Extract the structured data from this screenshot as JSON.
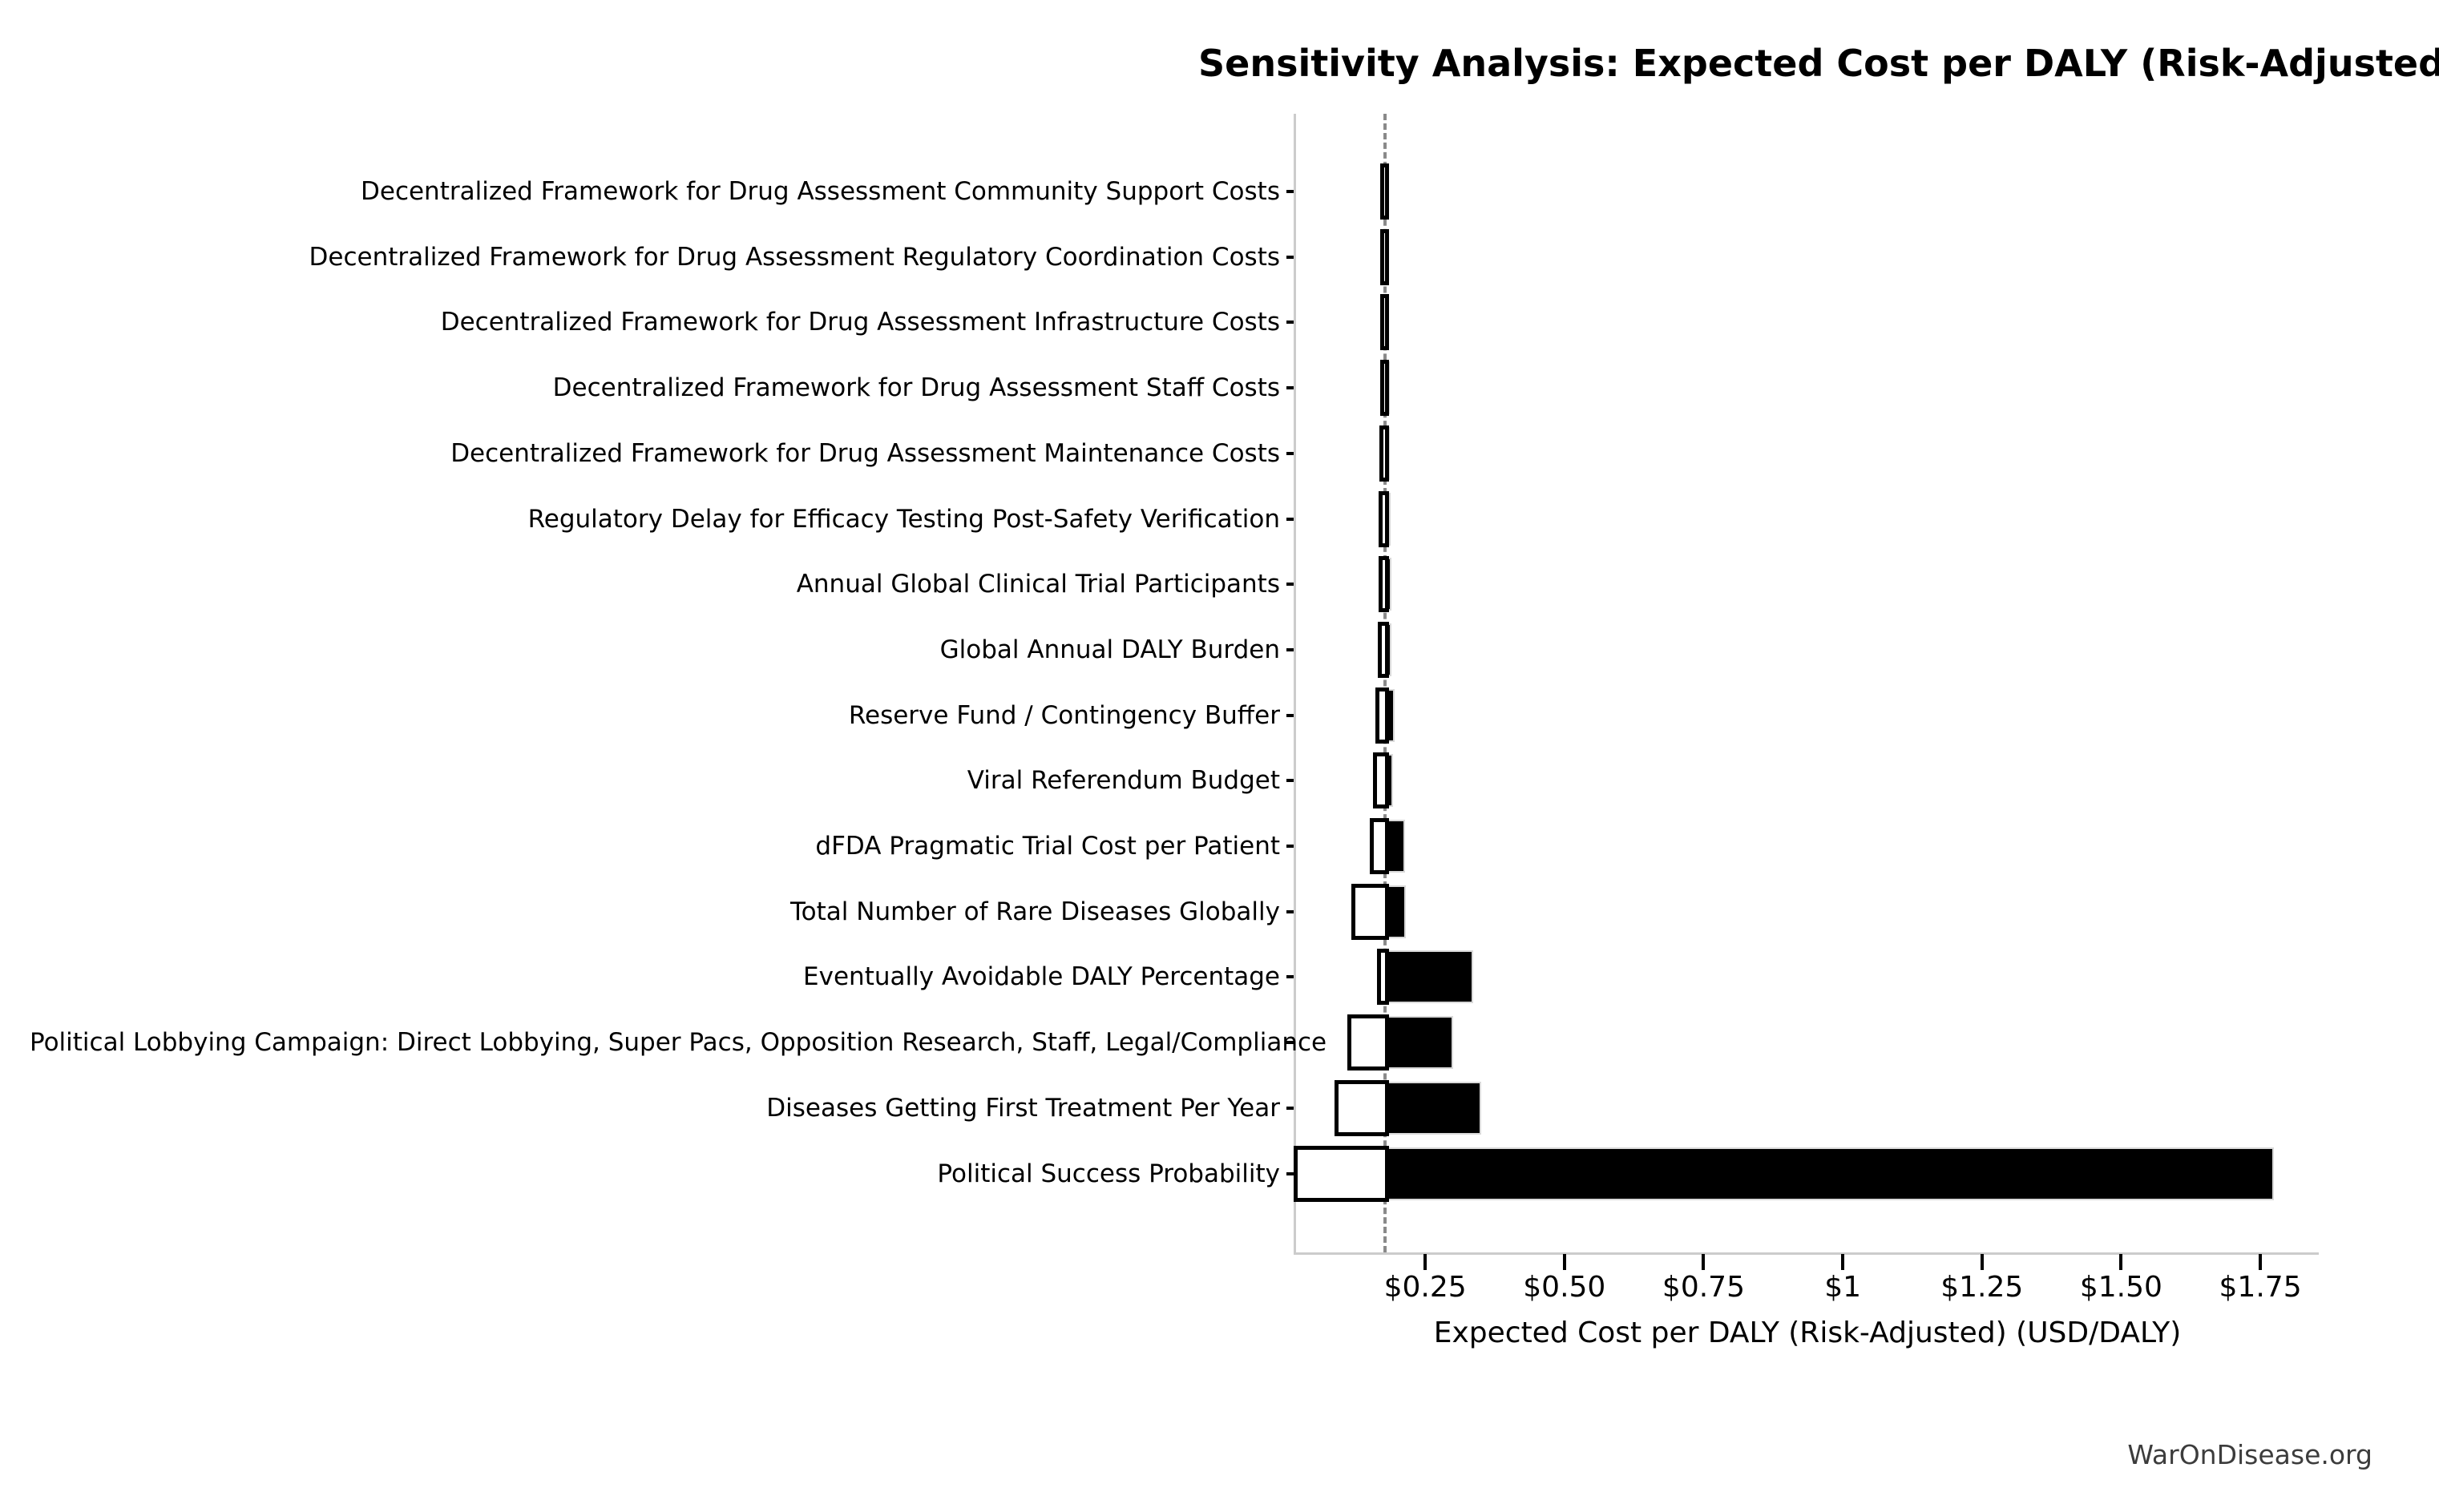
{
  "footer": {
    "watermark": "WarOnDisease.org"
  },
  "chart_data": {
    "type": "bar",
    "variant": "tornado-sensitivity",
    "orientation": "horizontal",
    "title": "Sensitivity Analysis: Expected Cost per DALY (Risk-Adjusted)",
    "xlabel": "Expected Cost per DALY (Risk-Adjusted) (USD/DALY)",
    "ylabel": "",
    "grid": false,
    "legend": null,
    "baseline_value": 0.178,
    "xlim": [
      0.018,
      1.855
    ],
    "x_ticks": [
      {
        "value": 0.25,
        "label": "$0.25"
      },
      {
        "value": 0.5,
        "label": "$0.50"
      },
      {
        "value": 0.75,
        "label": "$0.75"
      },
      {
        "value": 1.0,
        "label": "$1"
      },
      {
        "value": 1.25,
        "label": "$1.25"
      },
      {
        "value": 1.5,
        "label": "$1.50"
      },
      {
        "value": 1.75,
        "label": "$1.75"
      }
    ],
    "rows": [
      {
        "label": "Decentralized Framework for Drug Assessment Community Support Costs",
        "low": 0.176,
        "high": 0.182
      },
      {
        "label": "Decentralized Framework for Drug Assessment Regulatory Coordination Costs",
        "low": 0.176,
        "high": 0.182
      },
      {
        "label": "Decentralized Framework for Drug Assessment Infrastructure Costs",
        "low": 0.176,
        "high": 0.182
      },
      {
        "label": "Decentralized Framework for Drug Assessment Staff Costs",
        "low": 0.176,
        "high": 0.183
      },
      {
        "label": "Decentralized Framework for Drug Assessment Maintenance Costs",
        "low": 0.175,
        "high": 0.183
      },
      {
        "label": "Regulatory Delay for Efficacy Testing Post-Safety Verification",
        "low": 0.174,
        "high": 0.185
      },
      {
        "label": "Annual Global Clinical Trial Participants",
        "low": 0.173,
        "high": 0.186
      },
      {
        "label": "Global Annual DALY Burden",
        "low": 0.172,
        "high": 0.187
      },
      {
        "label": "Reserve Fund / Contingency Buffer",
        "low": 0.168,
        "high": 0.192
      },
      {
        "label": "Viral Referendum Budget",
        "low": 0.163,
        "high": 0.189
      },
      {
        "label": "dFDA Pragmatic Trial Cost per Patient",
        "low": 0.157,
        "high": 0.211
      },
      {
        "label": "Total Number of Rare Diseases Globally",
        "low": 0.124,
        "high": 0.212
      },
      {
        "label": "Eventually Avoidable DALY Percentage",
        "low": 0.17,
        "high": 0.334
      },
      {
        "label": "Political Lobbying Campaign: Direct Lobbying, Super Pacs, Opposition Research, Staff, Legal/Compliance",
        "low": 0.118,
        "high": 0.298
      },
      {
        "label": "Diseases Getting First Treatment Per Year",
        "low": 0.095,
        "high": 0.347
      },
      {
        "label": "Political Success Probability",
        "low": 0.021,
        "high": 1.771
      }
    ],
    "colors": {
      "high_bar_fill": "#000000",
      "high_bar_edge": "#d9d9d9",
      "low_bar_fill": "#ffffff",
      "low_bar_edge": "#000000",
      "baseline_line": "#8a8a8a",
      "spine": "#cccccc",
      "text": "#000000",
      "watermark_text": "#3c3c3c",
      "background": "#ffffff"
    }
  }
}
